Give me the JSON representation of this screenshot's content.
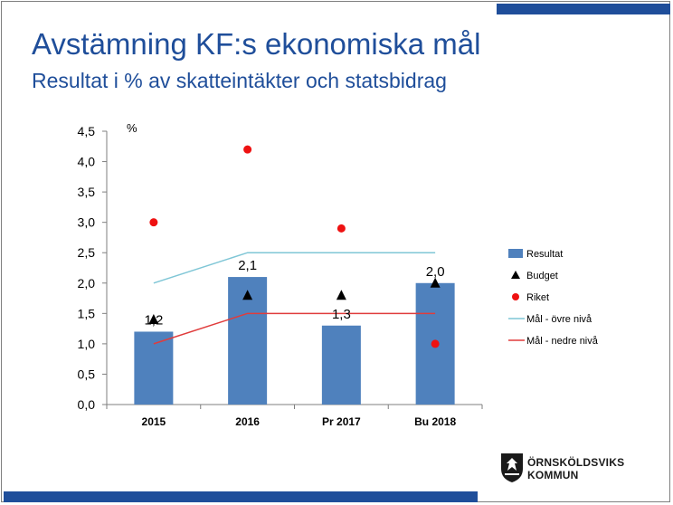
{
  "slide": {
    "title": "Avstämning KF:s ekonomiska mål",
    "subtitle": "Resultat i % av skatteintäkter och statsbidrag"
  },
  "logo": {
    "line1": "ÖRNSKÖLDSVIKS",
    "line2": "KOMMUN"
  },
  "colors": {
    "brand": "#1f4e9a",
    "bar": "#4f81bd",
    "riket": "#ee1111",
    "upper": "#7fc6d6",
    "lower": "#e03c3c"
  },
  "chart_data": {
    "type": "bar",
    "ylabel": "%",
    "ylim": [
      0,
      4.5
    ],
    "yticks": [
      "0,0",
      "0,5",
      "1,0",
      "1,5",
      "2,0",
      "2,5",
      "3,0",
      "3,5",
      "4,0",
      "4,5"
    ],
    "categories": [
      "2015",
      "2016",
      "Pr 2017",
      "Bu 2018"
    ],
    "legend_position": "right",
    "series": [
      {
        "name": "Resultat",
        "kind": "bar",
        "values": [
          1.2,
          2.1,
          1.3,
          2.0
        ],
        "labels": [
          "1,2",
          "2,1",
          "1,3",
          "2,0"
        ]
      },
      {
        "name": "Budget",
        "kind": "triangle",
        "values": [
          1.4,
          1.8,
          1.8,
          2.0
        ]
      },
      {
        "name": "Riket",
        "kind": "dot",
        "values": [
          3.0,
          4.2,
          2.9,
          1.0
        ]
      },
      {
        "name": "Mål - övre nivå",
        "kind": "line",
        "values": [
          2.0,
          2.5,
          2.5,
          2.5
        ]
      },
      {
        "name": "Mål - nedre nivå",
        "kind": "line",
        "values": [
          1.0,
          1.5,
          1.5,
          1.5
        ]
      }
    ]
  }
}
